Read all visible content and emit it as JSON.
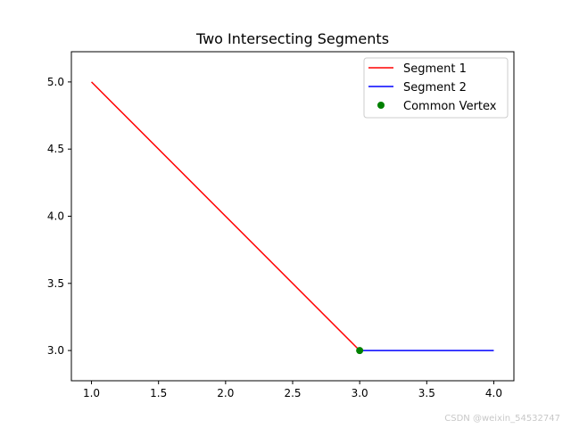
{
  "chart_data": {
    "type": "line",
    "title": "Two Intersecting Segments",
    "xlabel": "",
    "ylabel": "",
    "xlim": [
      0.85,
      4.15
    ],
    "ylim": [
      2.775,
      5.225
    ],
    "xticks": [
      "1.0",
      "1.5",
      "2.0",
      "2.5",
      "3.0",
      "3.5",
      "4.0"
    ],
    "yticks": [
      "3.0",
      "3.5",
      "4.0",
      "4.5",
      "5.0"
    ],
    "grid": false,
    "legend_position": "top-right",
    "series": [
      {
        "name": "Segment 1",
        "kind": "line",
        "color": "#ff0000",
        "x": [
          1,
          3
        ],
        "y": [
          5,
          3
        ]
      },
      {
        "name": "Segment 2",
        "kind": "line",
        "color": "#0000ff",
        "x": [
          3,
          4
        ],
        "y": [
          3,
          3
        ]
      },
      {
        "name": "Common Vertex",
        "kind": "marker",
        "color": "#008000",
        "x": [
          3
        ],
        "y": [
          3
        ]
      }
    ]
  },
  "watermark": "CSDN @weixin_54532747"
}
